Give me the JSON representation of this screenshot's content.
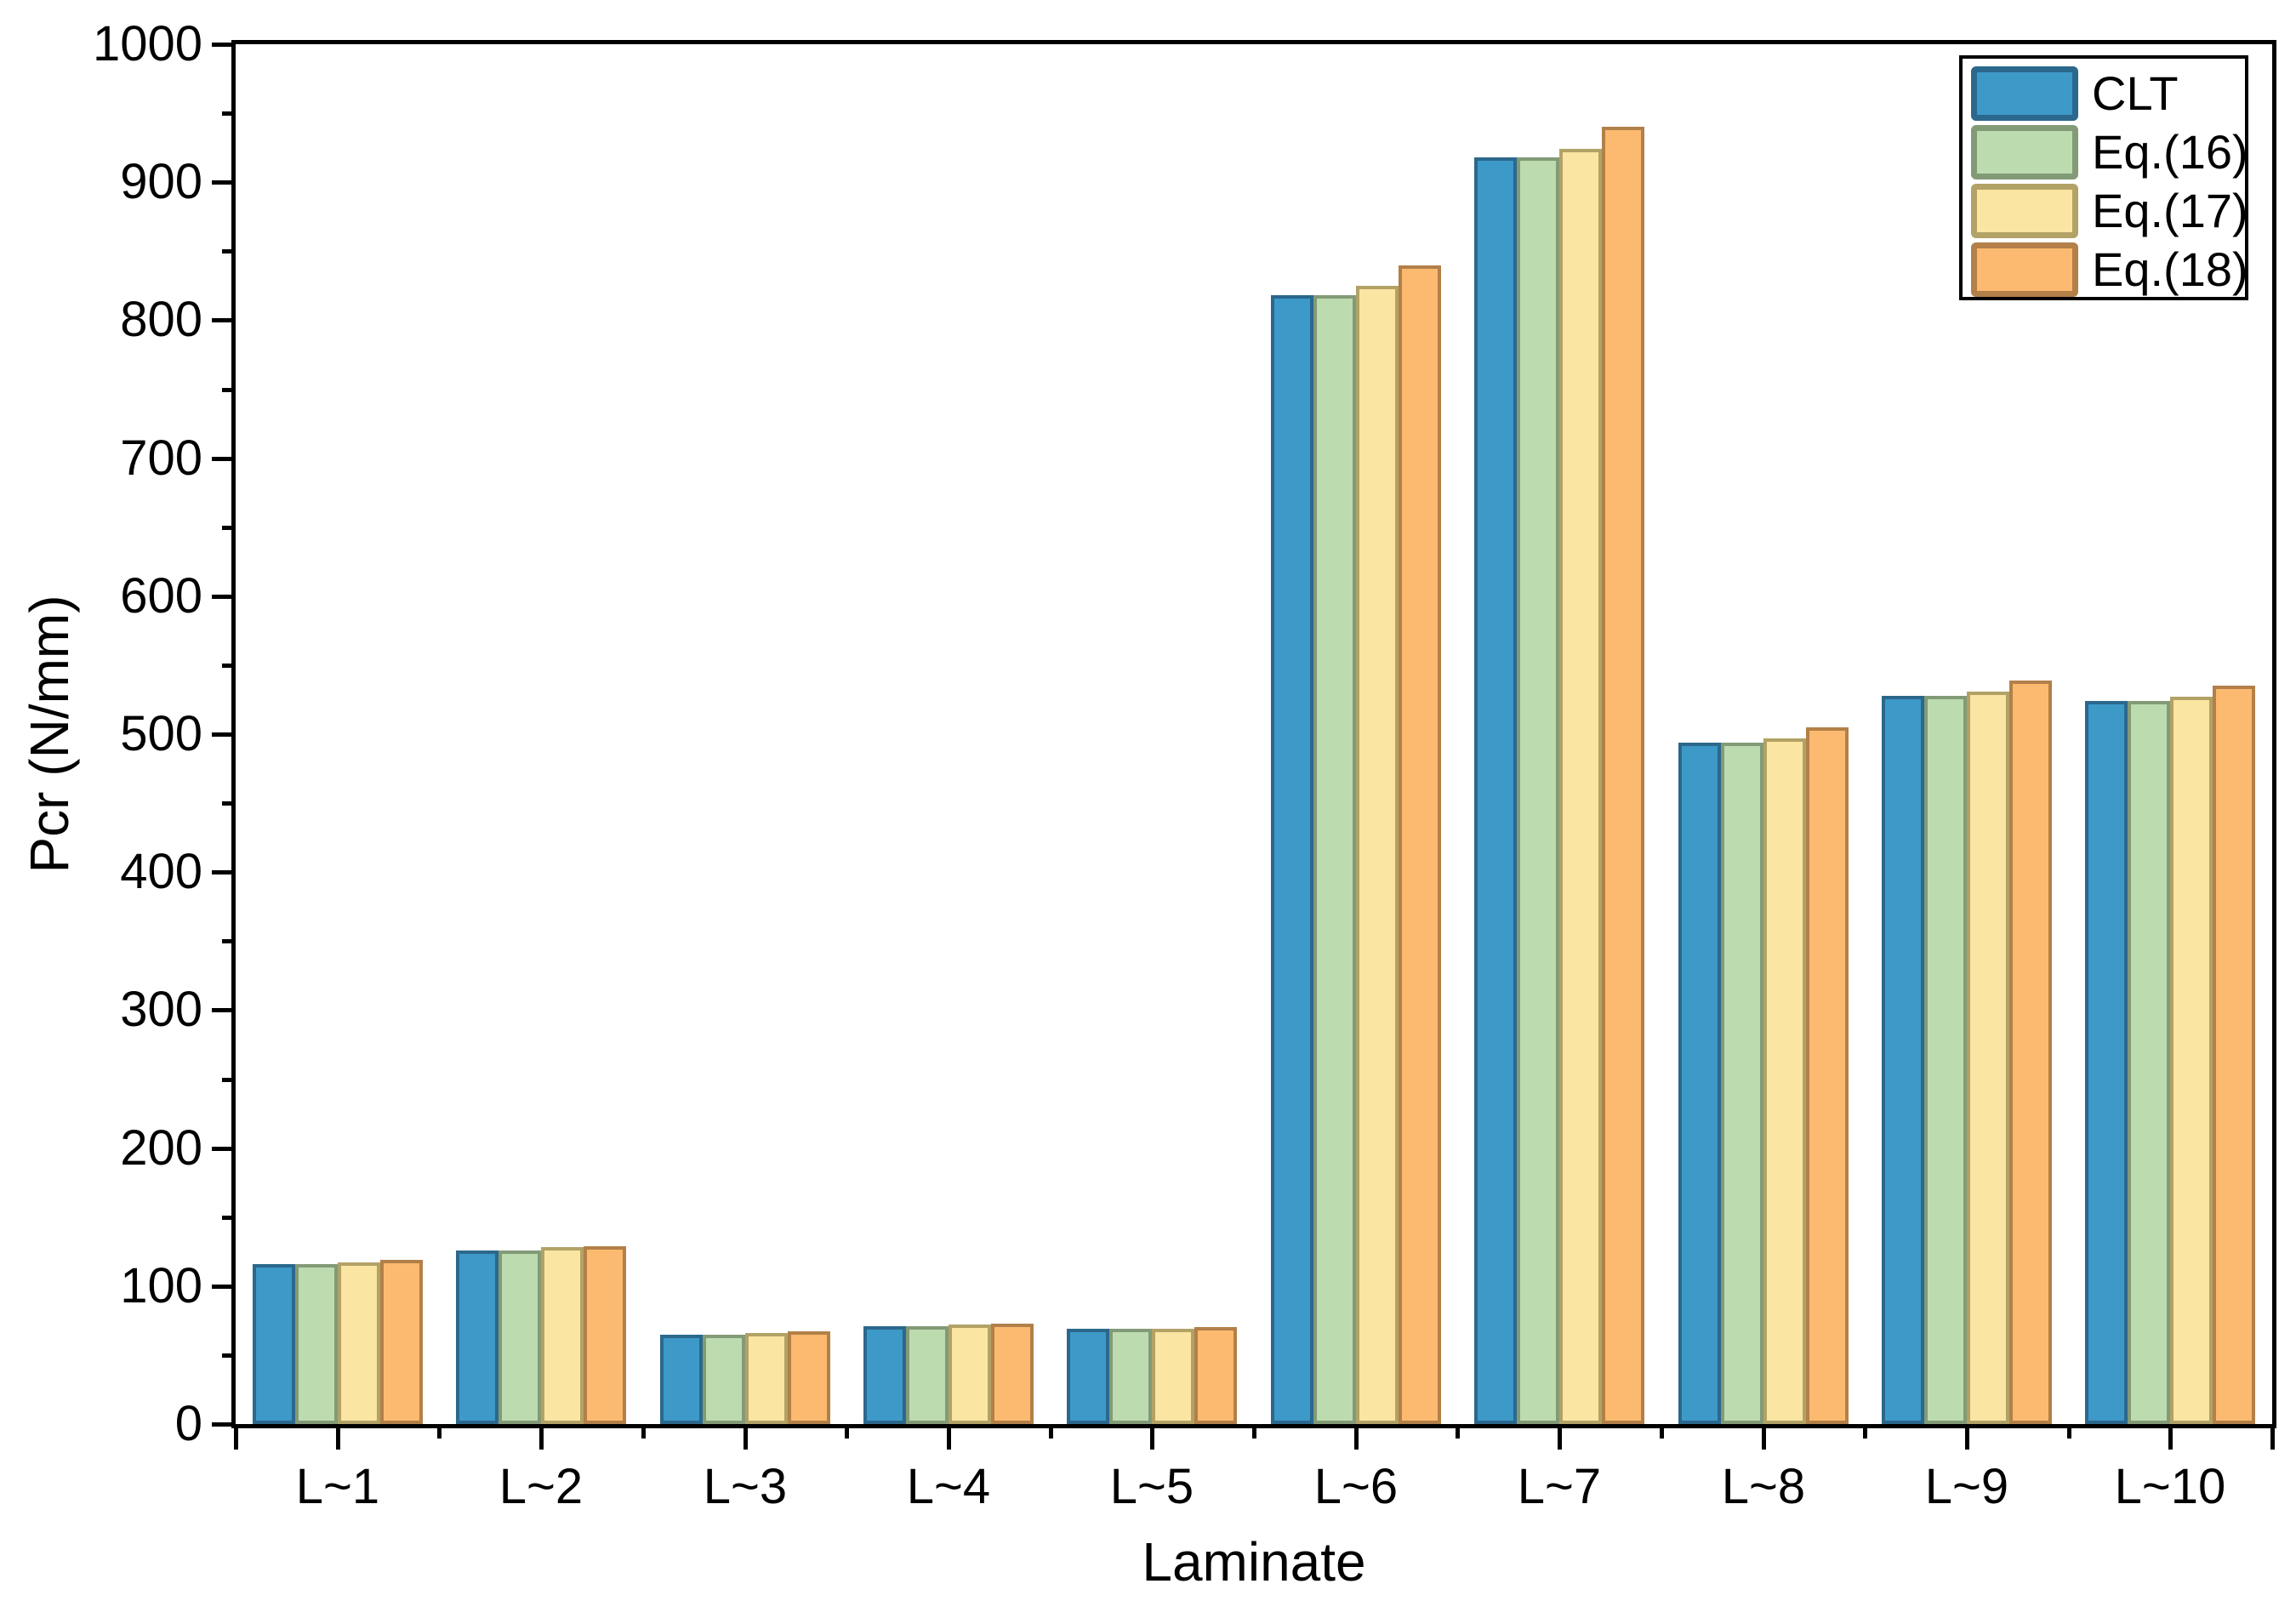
{
  "chart_data": {
    "type": "bar",
    "title": "",
    "xlabel": "Laminate",
    "ylabel": "Pcr (N/mm)",
    "categories": [
      "L~1",
      "L~2",
      "L~3",
      "L~4",
      "L~5",
      "L~6",
      "L~7",
      "L~8",
      "L~9",
      "L~10"
    ],
    "series": [
      {
        "name": "CLT",
        "fill": "#3D99C8",
        "border": "#2B688C",
        "values": [
          116,
          126,
          65,
          71,
          69,
          818,
          918,
          494,
          528,
          524
        ]
      },
      {
        "name": "Eq.(16)",
        "fill": "#BCDCB0",
        "border": "#839A77",
        "values": [
          116,
          126,
          65,
          71,
          69,
          818,
          918,
          494,
          528,
          524
        ]
      },
      {
        "name": "Eq.(17)",
        "fill": "#FBE5A2",
        "border": "#B2A266",
        "values": [
          117,
          128,
          66,
          72,
          69,
          825,
          924,
          497,
          531,
          527
        ]
      },
      {
        "name": "Eq.(18)",
        "fill": "#FCBA70",
        "border": "#B28048",
        "values": [
          119,
          129,
          67,
          73,
          70,
          840,
          940,
          505,
          539,
          535
        ]
      }
    ],
    "ylim": [
      0,
      1000
    ],
    "y_major_tick_step": 100,
    "y_minor_tick_step": 50,
    "y_tick_labels": [
      "0",
      "100",
      "200",
      "300",
      "400",
      "500",
      "600",
      "700",
      "800",
      "900",
      "1000"
    ],
    "legend_position": "top-right",
    "legend_entries": [
      "CLT",
      "Eq.(16)",
      "Eq.(17)",
      "Eq.(18)"
    ],
    "grid": false,
    "frame_color": "#000000",
    "background_color": "#ffffff"
  }
}
